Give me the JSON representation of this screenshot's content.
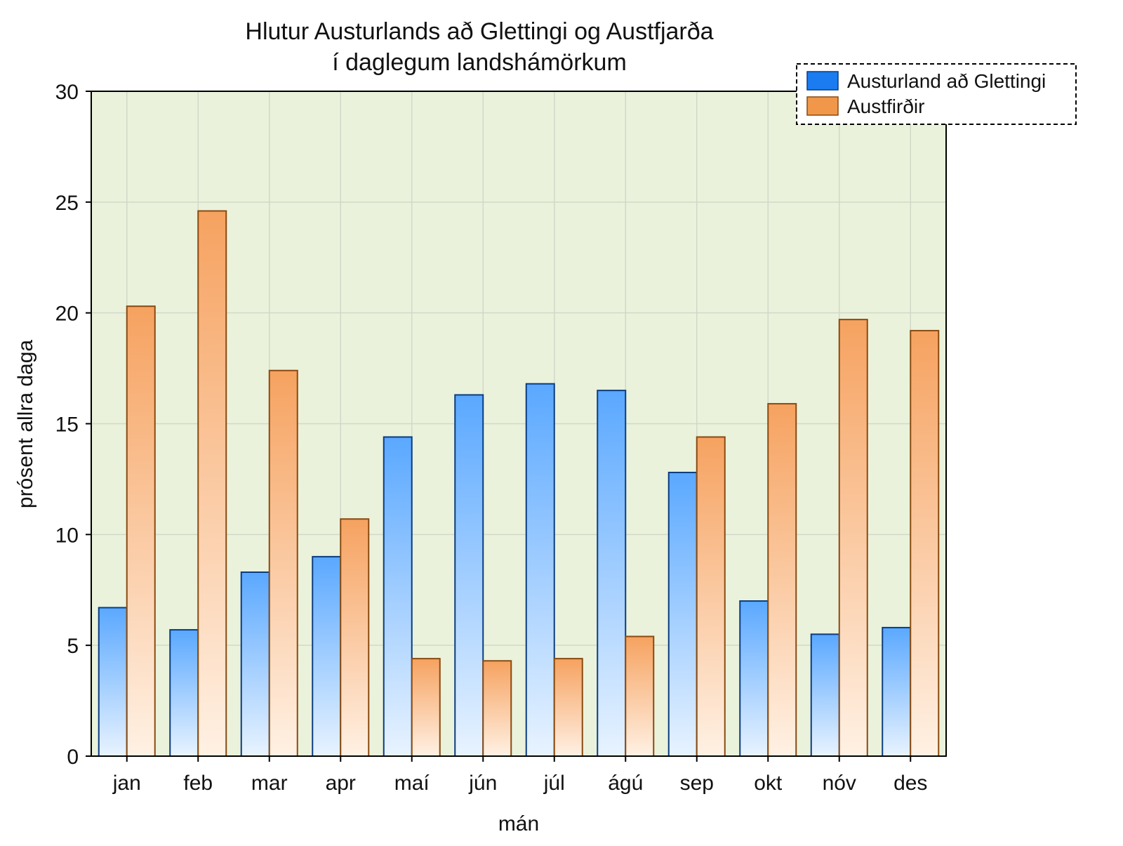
{
  "chart_data": {
    "type": "bar",
    "title": [
      "Hlutur Austurlands að Glettingi og Austfjarða",
      "í daglegum landshámörkum"
    ],
    "xlabel": "mán",
    "ylabel": "prósent allra daga",
    "categories": [
      "jan",
      "feb",
      "mar",
      "apr",
      "maí",
      "jún",
      "júl",
      "ágú",
      "sep",
      "okt",
      "nóv",
      "des"
    ],
    "ylim": [
      0,
      30
    ],
    "yticks": [
      0,
      5,
      10,
      15,
      20,
      25,
      30
    ],
    "grid": true,
    "legend_position": "top-right",
    "series": [
      {
        "name": "Austurland að Glettingi",
        "color": "#1a7cf0",
        "values": [
          6.7,
          5.7,
          8.3,
          9.0,
          14.4,
          16.3,
          16.8,
          16.5,
          12.8,
          7.0,
          5.5,
          5.8
        ]
      },
      {
        "name": "Austfirðir",
        "color": "#f0974a",
        "values": [
          20.3,
          24.6,
          17.4,
          10.7,
          4.4,
          4.3,
          4.4,
          5.4,
          14.4,
          15.9,
          19.7,
          19.2
        ]
      }
    ]
  }
}
